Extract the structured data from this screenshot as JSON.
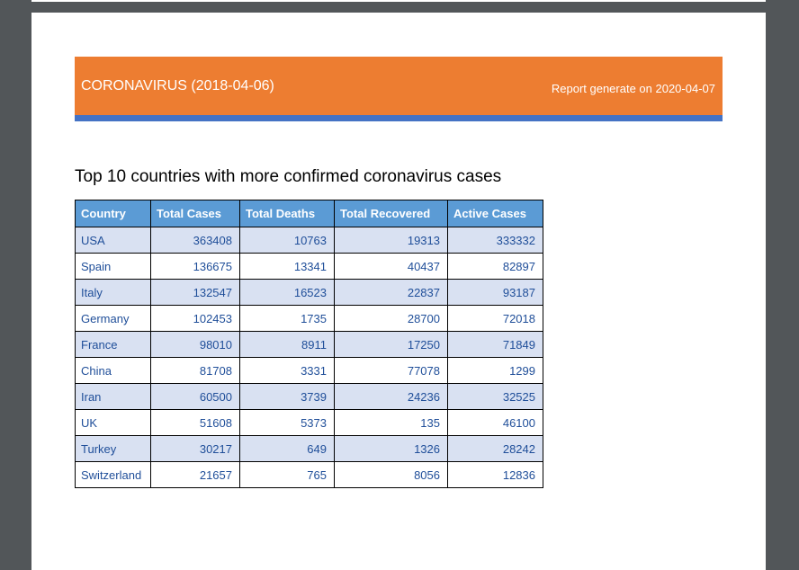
{
  "header": {
    "title": "CORONAVIRUS (2018-04-06)",
    "report_date": "Report generate on 2020-04-07"
  },
  "caption": "Top 10 countries with more confirmed coronavirus cases",
  "table": {
    "columns": [
      "Country",
      "Total Cases",
      "Total Deaths",
      "Total Recovered",
      "Active Cases"
    ],
    "rows": [
      [
        "USA",
        "363408",
        "10763",
        "19313",
        "333332"
      ],
      [
        "Spain",
        "136675",
        "13341",
        "40437",
        "82897"
      ],
      [
        "Italy",
        "132547",
        "16523",
        "22837",
        "93187"
      ],
      [
        "Germany",
        "102453",
        "1735",
        "28700",
        "72018"
      ],
      [
        "France",
        "98010",
        "8911",
        "17250",
        "71849"
      ],
      [
        "China",
        "81708",
        "3331",
        "77078",
        "1299"
      ],
      [
        "Iran",
        "60500",
        "3739",
        "24236",
        "32525"
      ],
      [
        "UK",
        "51608",
        "5373",
        "135",
        "46100"
      ],
      [
        "Turkey",
        "30217",
        "649",
        "1326",
        "28242"
      ],
      [
        "Switzerland",
        "21657",
        "765",
        "8056",
        "12836"
      ]
    ]
  },
  "colors": {
    "header_band": "#ed7d31",
    "header_underline": "#4472c4",
    "table_header": "#5b9bd5",
    "row_stripe": "#d9e1f2",
    "cell_text": "#1f4e99",
    "viewer_background": "#525659"
  }
}
